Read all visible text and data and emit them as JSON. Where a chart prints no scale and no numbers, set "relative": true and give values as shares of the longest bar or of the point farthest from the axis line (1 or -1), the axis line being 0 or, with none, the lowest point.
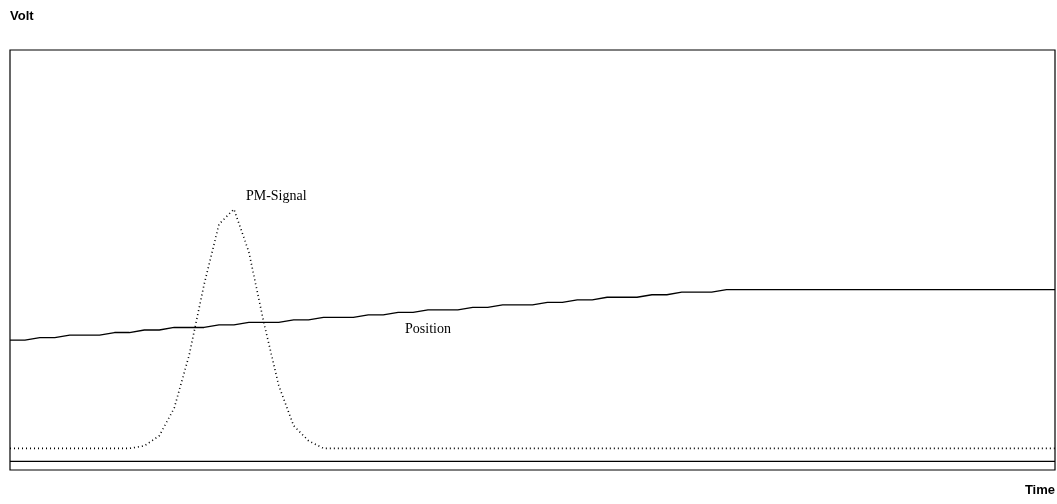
{
  "chart_data": {
    "type": "line",
    "relative": true,
    "annotations": [
      "Volt"
    ],
    "xlabel": "Time",
    "legend": false,
    "marker": "none",
    "categories": [
      null,
      null,
      null,
      null,
      null,
      null,
      null,
      null,
      null,
      null,
      null,
      null,
      null,
      null,
      null,
      null,
      null,
      null,
      null,
      null,
      null,
      null,
      null,
      null,
      null,
      null,
      null,
      null,
      null,
      null,
      null,
      null,
      null,
      null,
      null,
      null,
      null,
      null,
      null,
      null,
      null,
      null,
      null,
      null,
      null,
      null,
      null,
      null,
      null,
      null,
      null,
      null,
      null,
      null,
      null,
      null,
      null,
      null,
      null,
      null,
      null,
      null,
      null,
      null,
      null,
      null,
      null,
      null,
      null,
      null,
      null
    ],
    "series": [
      {
        "name": "PM-Signal",
        "color": "#000000",
        "line_style": "dotted",
        "values": [
          0.05,
          0.05,
          0.05,
          0.05,
          0.05,
          0.05,
          0.05,
          0.05,
          0.05,
          0.06,
          0.1,
          0.21,
          0.42,
          0.7,
          0.94,
          1,
          0.83,
          0.55,
          0.3,
          0.14,
          0.08,
          0.05,
          0.05,
          0.05,
          0.05,
          0.05,
          0.05,
          0.05,
          0.05,
          0.05,
          0.05,
          0.05,
          0.05,
          0.05,
          0.05,
          0.05,
          0.05,
          0.05,
          0.05,
          0.05,
          0.05,
          0.05,
          0.05,
          0.05,
          0.05,
          0.05,
          0.05,
          0.05,
          0.05,
          0.05,
          0.05,
          0.05,
          0.05,
          0.05,
          0.05,
          0.05,
          0.05,
          0.05,
          0.05,
          0.05,
          0.05,
          0.05,
          0.05,
          0.05,
          0.05,
          0.05,
          0.05,
          0.05,
          0.05,
          0.05,
          0.05
        ]
      },
      {
        "name": "Position",
        "color": "#000000",
        "line_style": "solid",
        "values": [
          0.48,
          0.48,
          0.49,
          0.49,
          0.5,
          0.5,
          0.5,
          0.51,
          0.51,
          0.52,
          0.52,
          0.53,
          0.53,
          0.53,
          0.54,
          0.54,
          0.55,
          0.55,
          0.55,
          0.56,
          0.56,
          0.57,
          0.57,
          0.57,
          0.58,
          0.58,
          0.59,
          0.59,
          0.6,
          0.6,
          0.6,
          0.61,
          0.61,
          0.62,
          0.62,
          0.62,
          0.63,
          0.63,
          0.64,
          0.64,
          0.65,
          0.65,
          0.65,
          0.66,
          0.66,
          0.67,
          0.67,
          0.67,
          0.68,
          0.68,
          0.68,
          0.68,
          0.68,
          0.68,
          0.68,
          0.68,
          0.68,
          0.68,
          0.68,
          0.68,
          0.68,
          0.68,
          0.68,
          0.68,
          0.68,
          0.68,
          0.68,
          0.68,
          0.68,
          0.68,
          0.68
        ]
      }
    ]
  }
}
